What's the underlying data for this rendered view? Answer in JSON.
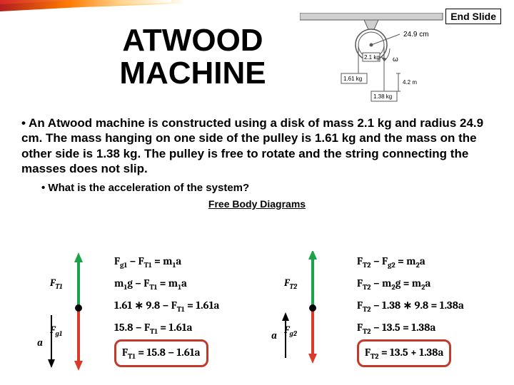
{
  "header": {
    "end_slide": "End Slide",
    "title_line1": "ATWOOD",
    "title_line2": "MACHINE"
  },
  "stripe": {
    "colors": [
      "#d82828",
      "#ff8c1a",
      "#ffcc66",
      "#ffffff"
    ]
  },
  "diagram": {
    "pulley_label": "2.1 kg",
    "radius_label": "24.9 cm",
    "mass_left": "1.61 kg",
    "mass_right": "1.38 kg",
    "drop_label": "4.2 m",
    "omega_label": "ω",
    "colors": {
      "line": "#5a5a5a",
      "fill": "#ffffff",
      "bar": "#cfcfcf"
    }
  },
  "problem": {
    "text": "An Atwood machine is constructed using a disk of mass 2.1 kg and radius 24.9 cm.  The mass hanging on one side of the pulley is 1.61 kg and the mass on the other side is 1.38 kg.  The pulley is free to rotate and the string connecting the masses does not slip.",
    "question": "What is the acceleration of the system?",
    "fbd_heading": "Free Body Diagrams"
  },
  "fbd": {
    "left": {
      "tension": "F",
      "tension_sub": "T1",
      "weight": "F",
      "weight_sub": "g1",
      "accel": "a",
      "arrow_up_color": "#1ca349",
      "arrow_down_color": "#d93a2a"
    },
    "right": {
      "tension": "F",
      "tension_sub": "T2",
      "weight": "F",
      "weight_sub": "g2",
      "accel": "a",
      "arrow_up_color": "#1ca349",
      "arrow_down_color": "#d93a2a"
    },
    "dot_color": "#000000"
  },
  "equations": {
    "left": [
      "F<sub>g1</sub> − F<sub>T1</sub> = m<sub>1</sub>a",
      "m<sub>1</sub>g − F<sub>T1</sub> = m<sub>1</sub>a",
      "1.61 ∗ 9.8 − F<sub>T1</sub> = 1.61a",
      "15.8 − F<sub>T1</sub> = 1.61a",
      "F<sub>T1</sub> = 15.8 − 1.61a"
    ],
    "right": [
      "F<sub>T2</sub> − F<sub>g2</sub> = m<sub>2</sub>a",
      "F<sub>T2</sub> − m<sub>2</sub>g = m<sub>2</sub>a",
      "F<sub>T2</sub> − 1.38 ∗ 9.8 = 1.38a",
      "F<sub>T2</sub> − 13.5 = 1.38a",
      "F<sub>T2</sub> = 13.5 + 1.38a"
    ],
    "box_color": "#c23a2a"
  }
}
